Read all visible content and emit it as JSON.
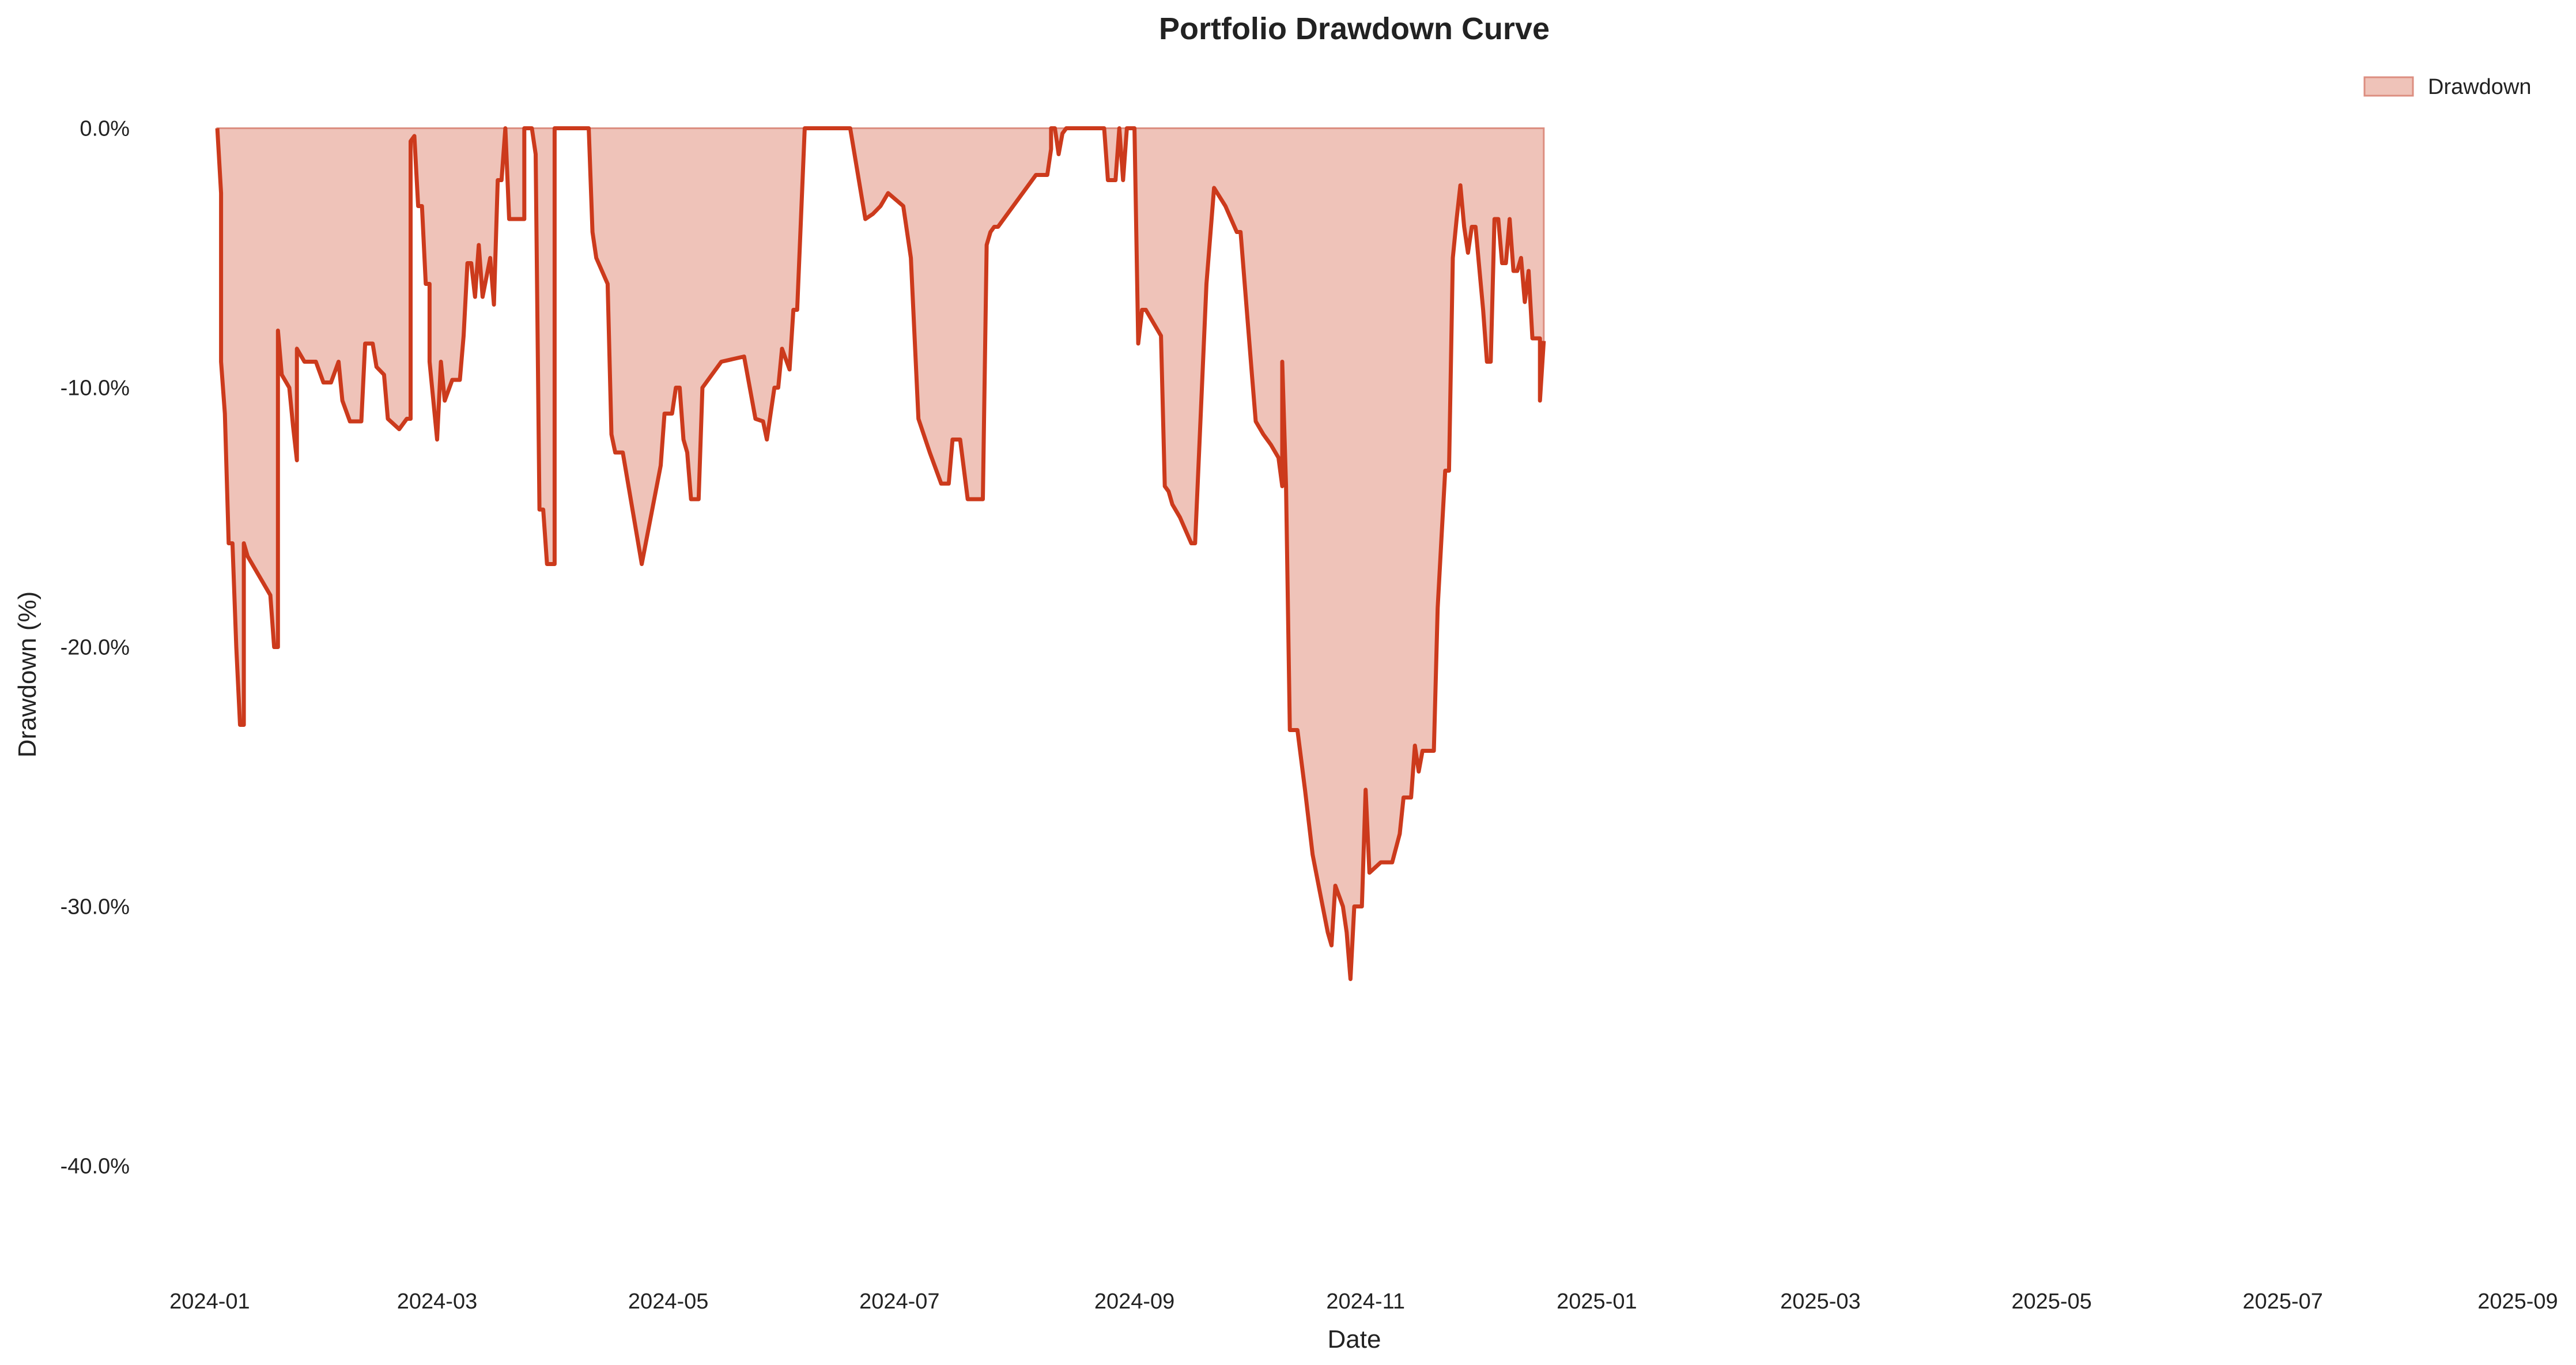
{
  "chart_data": {
    "type": "area",
    "title": "Portfolio Drawdown Curve",
    "xlabel": "Date",
    "ylabel": "Drawdown (%)",
    "xlim": [
      "2023-12-20",
      "2025-09-08"
    ],
    "ylim": [
      -43.5,
      1.5
    ],
    "x_ticks": [
      "2024-01-01",
      "2024-03-01",
      "2024-05-01",
      "2024-07-01",
      "2024-09-01",
      "2024-11-01",
      "2025-01-01",
      "2025-03-01",
      "2025-05-01",
      "2025-07-01",
      "2025-09-01"
    ],
    "x_tick_labels": [
      "2024-01",
      "2024-03",
      "2024-05",
      "2024-07",
      "2024-09",
      "2024-11",
      "2025-01",
      "2025-03",
      "2025-05",
      "2025-07",
      "2025-09"
    ],
    "y_ticks": [
      0,
      -10,
      -20,
      -30,
      -40
    ],
    "y_tick_labels": [
      "0.0%",
      "-10.0%",
      "-20.0%",
      "-30.0%",
      "-40.0%"
    ],
    "grid": false,
    "legend_position": "top-right",
    "colors": {
      "line": "#cc3a1c",
      "fill": "#efc3b9",
      "fill_edge": "#dc8e80"
    },
    "series": [
      {
        "name": "Drawdown",
        "points": [
          [
            "2024-01-03",
            0
          ],
          [
            "2024-01-04",
            -2.5
          ],
          [
            "2024-01-04",
            -9
          ],
          [
            "2024-01-05",
            -11
          ],
          [
            "2024-01-06",
            -16
          ],
          [
            "2024-01-07",
            -16
          ],
          [
            "2024-01-08",
            -20
          ],
          [
            "2024-01-09",
            -23
          ],
          [
            "2024-01-10",
            -23
          ],
          [
            "2024-01-10",
            -16
          ],
          [
            "2024-01-11",
            -16.5
          ],
          [
            "2024-01-15",
            -17.5
          ],
          [
            "2024-01-17",
            -18
          ],
          [
            "2024-01-18",
            -20
          ],
          [
            "2024-01-19",
            -20
          ],
          [
            "2024-01-19",
            -7.8
          ],
          [
            "2024-01-20",
            -9.5
          ],
          [
            "2024-01-22",
            -10
          ],
          [
            "2024-01-23",
            -11.5
          ],
          [
            "2024-01-24",
            -12.8
          ],
          [
            "2024-01-24",
            -8.5
          ],
          [
            "2024-01-26",
            -9
          ],
          [
            "2024-01-29",
            -9
          ],
          [
            "2024-01-31",
            -9.8
          ],
          [
            "2024-02-02",
            -9.8
          ],
          [
            "2024-02-04",
            -9
          ],
          [
            "2024-02-05",
            -10.5
          ],
          [
            "2024-02-07",
            -11.3
          ],
          [
            "2024-02-10",
            -11.3
          ],
          [
            "2024-02-11",
            -8.3
          ],
          [
            "2024-02-13",
            -8.3
          ],
          [
            "2024-02-14",
            -9.2
          ],
          [
            "2024-02-16",
            -9.5
          ],
          [
            "2024-02-17",
            -11.2
          ],
          [
            "2024-02-20",
            -11.6
          ],
          [
            "2024-02-22",
            -11.2
          ],
          [
            "2024-02-23",
            -11.2
          ],
          [
            "2024-02-23",
            -0.5
          ],
          [
            "2024-02-24",
            -0.3
          ],
          [
            "2024-02-25",
            -3
          ],
          [
            "2024-02-26",
            -3
          ],
          [
            "2024-02-27",
            -6
          ],
          [
            "2024-02-28",
            -6
          ],
          [
            "2024-02-28",
            -9
          ],
          [
            "2024-03-01",
            -12
          ],
          [
            "2024-03-02",
            -9
          ],
          [
            "2024-03-03",
            -10.5
          ],
          [
            "2024-03-05",
            -9.7
          ],
          [
            "2024-03-07",
            -9.7
          ],
          [
            "2024-03-08",
            -8
          ],
          [
            "2024-03-09",
            -5.2
          ],
          [
            "2024-03-10",
            -5.2
          ],
          [
            "2024-03-11",
            -6.5
          ],
          [
            "2024-03-12",
            -4.5
          ],
          [
            "2024-03-13",
            -6.5
          ],
          [
            "2024-03-15",
            -5
          ],
          [
            "2024-03-16",
            -6.8
          ],
          [
            "2024-03-17",
            -2
          ],
          [
            "2024-03-18",
            -2
          ],
          [
            "2024-03-19",
            0
          ],
          [
            "2024-03-20",
            -3.5
          ],
          [
            "2024-03-24",
            -3.5
          ],
          [
            "2024-03-24",
            0
          ],
          [
            "2024-03-26",
            0
          ],
          [
            "2024-03-27",
            -1
          ],
          [
            "2024-03-28",
            -14.7
          ],
          [
            "2024-03-29",
            -14.7
          ],
          [
            "2024-03-30",
            -16.8
          ],
          [
            "2024-04-01",
            -16.8
          ],
          [
            "2024-04-01",
            0
          ],
          [
            "2024-04-10",
            0
          ],
          [
            "2024-04-11",
            -4
          ],
          [
            "2024-04-12",
            -5
          ],
          [
            "2024-04-15",
            -6
          ],
          [
            "2024-04-16",
            -11.8
          ],
          [
            "2024-04-17",
            -12.5
          ],
          [
            "2024-04-19",
            -12.5
          ],
          [
            "2024-04-24",
            -16.8
          ],
          [
            "2024-04-29",
            -13
          ],
          [
            "2024-04-30",
            -11
          ],
          [
            "2024-05-02",
            -11
          ],
          [
            "2024-05-03",
            -10
          ],
          [
            "2024-05-04",
            -10
          ],
          [
            "2024-05-05",
            -12
          ],
          [
            "2024-05-06",
            -12.5
          ],
          [
            "2024-05-07",
            -14.3
          ],
          [
            "2024-05-09",
            -14.3
          ],
          [
            "2024-05-10",
            -10
          ],
          [
            "2024-05-15",
            -9
          ],
          [
            "2024-05-21",
            -8.8
          ],
          [
            "2024-05-24",
            -11.2
          ],
          [
            "2024-05-26",
            -11.3
          ],
          [
            "2024-05-27",
            -12
          ],
          [
            "2024-05-28",
            -11
          ],
          [
            "2024-05-29",
            -10
          ],
          [
            "2024-05-30",
            -10
          ],
          [
            "2024-05-31",
            -8.5
          ],
          [
            "2024-06-02",
            -9.3
          ],
          [
            "2024-06-03",
            -7
          ],
          [
            "2024-06-04",
            -7
          ],
          [
            "2024-06-06",
            0
          ],
          [
            "2024-06-18",
            0
          ],
          [
            "2024-06-22",
            -3.5
          ],
          [
            "2024-06-24",
            -3.3
          ],
          [
            "2024-06-26",
            -3
          ],
          [
            "2024-06-28",
            -2.5
          ],
          [
            "2024-07-02",
            -3
          ],
          [
            "2024-07-04",
            -5
          ],
          [
            "2024-07-06",
            -11.2
          ],
          [
            "2024-07-09",
            -12.5
          ],
          [
            "2024-07-12",
            -13.7
          ],
          [
            "2024-07-14",
            -13.7
          ],
          [
            "2024-07-15",
            -12
          ],
          [
            "2024-07-17",
            -12
          ],
          [
            "2024-07-19",
            -14.3
          ],
          [
            "2024-07-23",
            -14.3
          ],
          [
            "2024-07-24",
            -4.5
          ],
          [
            "2024-07-25",
            -4
          ],
          [
            "2024-07-26",
            -3.8
          ],
          [
            "2024-07-27",
            -3.8
          ],
          [
            "2024-08-06",
            -1.8
          ],
          [
            "2024-08-07",
            -1.8
          ],
          [
            "2024-08-08",
            -1.8
          ],
          [
            "2024-08-09",
            -1.8
          ],
          [
            "2024-08-10",
            -0.8
          ],
          [
            "2024-08-10",
            0
          ],
          [
            "2024-08-11",
            0
          ],
          [
            "2024-08-12",
            -1
          ],
          [
            "2024-08-13",
            -0.2
          ],
          [
            "2024-08-14",
            0
          ],
          [
            "2024-08-24",
            0
          ],
          [
            "2024-08-25",
            -2
          ],
          [
            "2024-08-27",
            -2
          ],
          [
            "2024-08-28",
            0
          ],
          [
            "2024-08-29",
            -2
          ],
          [
            "2024-08-30",
            0
          ],
          [
            "2024-09-01",
            0
          ],
          [
            "2024-09-02",
            -8.3
          ],
          [
            "2024-09-03",
            -7
          ],
          [
            "2024-09-04",
            -7
          ],
          [
            "2024-09-06",
            -7.5
          ],
          [
            "2024-09-08",
            -8
          ],
          [
            "2024-09-09",
            -13.8
          ],
          [
            "2024-09-10",
            -14
          ],
          [
            "2024-09-11",
            -14.5
          ],
          [
            "2024-09-13",
            -15
          ],
          [
            "2024-09-16",
            -16
          ],
          [
            "2024-09-17",
            -16
          ],
          [
            "2024-09-20",
            -6
          ],
          [
            "2024-09-22",
            -2.3
          ],
          [
            "2024-09-25",
            -3
          ],
          [
            "2024-09-28",
            -4
          ],
          [
            "2024-09-29",
            -4
          ],
          [
            "2024-10-02",
            -9.5
          ],
          [
            "2024-10-03",
            -11.3
          ],
          [
            "2024-10-05",
            -11.8
          ],
          [
            "2024-10-07",
            -12.2
          ],
          [
            "2024-10-09",
            -12.7
          ],
          [
            "2024-10-10",
            -13.8
          ],
          [
            "2024-10-10",
            -9
          ],
          [
            "2024-10-11",
            -13.8
          ],
          [
            "2024-10-12",
            -23.2
          ],
          [
            "2024-10-14",
            -23.2
          ],
          [
            "2024-10-16",
            -25.5
          ],
          [
            "2024-10-18",
            -28
          ],
          [
            "2024-10-20",
            -29.5
          ],
          [
            "2024-10-22",
            -31
          ],
          [
            "2024-10-23",
            -31.5
          ],
          [
            "2024-10-24",
            -29.2
          ],
          [
            "2024-10-26",
            -30
          ],
          [
            "2024-10-27",
            -31
          ],
          [
            "2024-10-28",
            -32.8
          ],
          [
            "2024-10-29",
            -30
          ],
          [
            "2024-10-31",
            -30
          ],
          [
            "2024-11-01",
            -25.5
          ],
          [
            "2024-11-02",
            -28.7
          ],
          [
            "2024-11-05",
            -28.3
          ],
          [
            "2024-11-08",
            -28.3
          ],
          [
            "2024-11-10",
            -27.2
          ],
          [
            "2024-11-11",
            -25.8
          ],
          [
            "2024-11-13",
            -25.8
          ],
          [
            "2024-11-14",
            -23.8
          ],
          [
            "2024-11-15",
            -24.8
          ],
          [
            "2024-11-16",
            -24
          ],
          [
            "2024-11-19",
            -24
          ],
          [
            "2024-11-20",
            -18.5
          ],
          [
            "2024-11-21",
            -15.8
          ],
          [
            "2024-11-22",
            -13.2
          ],
          [
            "2024-11-23",
            -13.2
          ],
          [
            "2024-11-24",
            -5
          ],
          [
            "2024-11-25",
            -3.5
          ],
          [
            "2024-11-26",
            -2.2
          ],
          [
            "2024-11-27",
            -3.8
          ],
          [
            "2024-11-28",
            -4.8
          ],
          [
            "2024-11-29",
            -3.8
          ],
          [
            "2024-11-30",
            -3.8
          ],
          [
            "2024-12-02",
            -7
          ],
          [
            "2024-12-03",
            -9
          ],
          [
            "2024-12-04",
            -9
          ],
          [
            "2024-12-05",
            -3.5
          ],
          [
            "2024-12-06",
            -3.5
          ],
          [
            "2024-12-07",
            -5.2
          ],
          [
            "2024-12-08",
            -5.2
          ],
          [
            "2024-12-09",
            -3.5
          ],
          [
            "2024-12-10",
            -5.5
          ],
          [
            "2024-12-11",
            -5.5
          ],
          [
            "2024-12-12",
            -5
          ],
          [
            "2024-12-13",
            -6.7
          ],
          [
            "2024-12-14",
            -5.5
          ],
          [
            "2024-12-15",
            -8.1
          ],
          [
            "2024-12-17",
            -8.1
          ],
          [
            "2024-12-17",
            -10.5
          ],
          [
            "2024-12-18",
            -8.2
          ]
        ]
      }
    ]
  }
}
